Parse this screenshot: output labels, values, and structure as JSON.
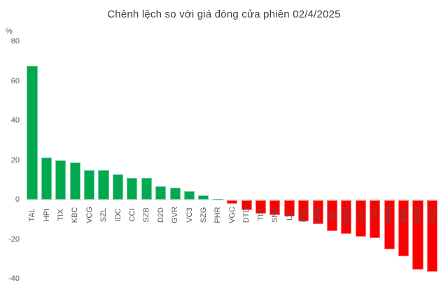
{
  "title": "Chênh lệch so với giá đóng cửa phiên 02/4/2025",
  "chart_data": {
    "type": "bar",
    "title": "Chênh lệch so với giá đóng cửa phiên 02/4/2025",
    "unit_label": "%",
    "xlabel": "",
    "ylabel": "%",
    "ylim": [
      -45,
      80
    ],
    "yticks": [
      80,
      60,
      40,
      20,
      0,
      -20,
      -40
    ],
    "grid": false,
    "legend": "none",
    "positive_color": "#00a84f",
    "negative_color": "#fa0000",
    "tick_label_color": "#595959",
    "title_color": "#3d3d3d",
    "axis_line_color": "#d9d9d9",
    "categories": [
      "TAL",
      "HPI",
      "TIX",
      "KBC",
      "VCG",
      "SZL",
      "IDC",
      "CCI",
      "SZB",
      "D2D",
      "GVR",
      "VC3",
      "SZG",
      "PHR",
      "VGC",
      "DTD",
      "TIP",
      "SNZ",
      "IJC",
      "PXL",
      "LHG",
      "SIP",
      "VRG",
      "IDV",
      "TID",
      "BCM",
      "SZC",
      "MH3",
      "NTC"
    ],
    "values": [
      67.5,
      21.1,
      20.0,
      18.7,
      14.9,
      14.7,
      12.6,
      11.0,
      10.8,
      6.6,
      6.1,
      4.1,
      2.0,
      0.4,
      -1.6,
      -4.8,
      -6.9,
      -7.3,
      -8.0,
      -10.5,
      -12.0,
      -15.7,
      -17.1,
      -18.3,
      -19.0,
      -24.9,
      -28.3,
      -35.2,
      -36.2
    ]
  }
}
